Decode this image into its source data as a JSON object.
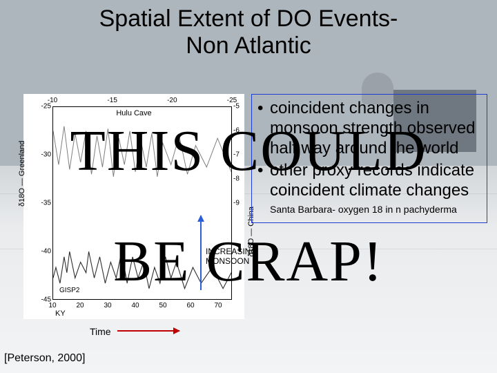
{
  "title_line1": "Spatial Extent of DO Events-",
  "title_line2": "Non Atlantic",
  "overlay": {
    "line1": "THIS COULD",
    "line2": "BE CRAP!"
  },
  "citation": "[Peterson, 2000]",
  "time_label": "Time",
  "monsoon_label_1": "INCREASING",
  "monsoon_label_2": "MONSOON",
  "bullets": {
    "b1": "coincident changes in monsoon strength observed half way around the world",
    "b2": "other proxy records indicate coincident climate changes",
    "sub": "Santa Barbara- oxygen 18 in n pachyderma",
    "border_color": "#1f3bd6"
  },
  "chart": {
    "type": "line",
    "background_color": "#ffffff",
    "axis_color": "#000000",
    "top_label": "Hulu Cave",
    "bottom_label_left": "KY",
    "bottom_label_center": "GISP2",
    "left_axis_label": "δ18O — Greenland",
    "right_axis_label": "δ18O — China",
    "x_top_ticks": [
      -25,
      -20,
      -15,
      -10
    ],
    "x_bottom_ticks": [
      10,
      20,
      30,
      40,
      50,
      60,
      70
    ],
    "y_left_ticks": [
      -25,
      -30,
      -35,
      -40,
      -45
    ],
    "y_right_ticks": [
      -5,
      -6,
      -7,
      -8,
      -9
    ],
    "xlim": [
      10,
      75
    ],
    "ylim_left": [
      -45,
      -25
    ],
    "ylim_right": [
      -9,
      -5
    ],
    "series": {
      "greenland": {
        "label": "GISP2",
        "color": "#2b2b2b",
        "stroke_width": 1.1,
        "points": [
          [
            10,
            -41
          ],
          [
            11,
            -39
          ],
          [
            12.5,
            -42
          ],
          [
            14,
            -37
          ],
          [
            15,
            -40
          ],
          [
            16,
            -36
          ],
          [
            18,
            -41
          ],
          [
            20,
            -38
          ],
          [
            22,
            -40
          ],
          [
            23,
            -36
          ],
          [
            25,
            -41
          ],
          [
            27,
            -37
          ],
          [
            29,
            -42
          ],
          [
            31,
            -38
          ],
          [
            33,
            -41
          ],
          [
            35,
            -36
          ],
          [
            37,
            -42
          ],
          [
            39,
            -37
          ],
          [
            41,
            -41
          ],
          [
            43,
            -38
          ],
          [
            45,
            -43
          ],
          [
            47,
            -39
          ],
          [
            49,
            -42
          ],
          [
            51,
            -37
          ],
          [
            53,
            -41
          ],
          [
            55,
            -38
          ],
          [
            58,
            -43
          ],
          [
            61,
            -39
          ],
          [
            64,
            -42
          ],
          [
            68,
            -39
          ],
          [
            72,
            -43
          ],
          [
            75,
            -40
          ]
        ]
      },
      "hulu": {
        "label": "Hulu Cave",
        "color": "#7d7d7d",
        "stroke_width": 1.0,
        "points": [
          [
            10,
            -6.0
          ],
          [
            12,
            -7.4
          ],
          [
            14,
            -5.8
          ],
          [
            16,
            -7.6
          ],
          [
            18,
            -6.1
          ],
          [
            20,
            -7.3
          ],
          [
            22,
            -6.0
          ],
          [
            24,
            -7.8
          ],
          [
            26,
            -6.2
          ],
          [
            28,
            -7.5
          ],
          [
            30,
            -5.9
          ],
          [
            32,
            -7.9
          ],
          [
            34,
            -6.3
          ],
          [
            36,
            -7.4
          ],
          [
            38,
            -6.0
          ],
          [
            40,
            -7.7
          ],
          [
            42,
            -6.4
          ],
          [
            44,
            -7.5
          ],
          [
            46,
            -6.1
          ],
          [
            48,
            -7.9
          ],
          [
            50,
            -6.5
          ],
          [
            53,
            -7.4
          ],
          [
            56,
            -6.2
          ],
          [
            59,
            -7.8
          ],
          [
            62,
            -6.6
          ],
          [
            66,
            -7.5
          ],
          [
            70,
            -6.3
          ],
          [
            75,
            -7.7
          ]
        ]
      }
    },
    "arrows": {
      "time_color": "#c00000",
      "monsoon_color": "#2b5fd9"
    }
  }
}
